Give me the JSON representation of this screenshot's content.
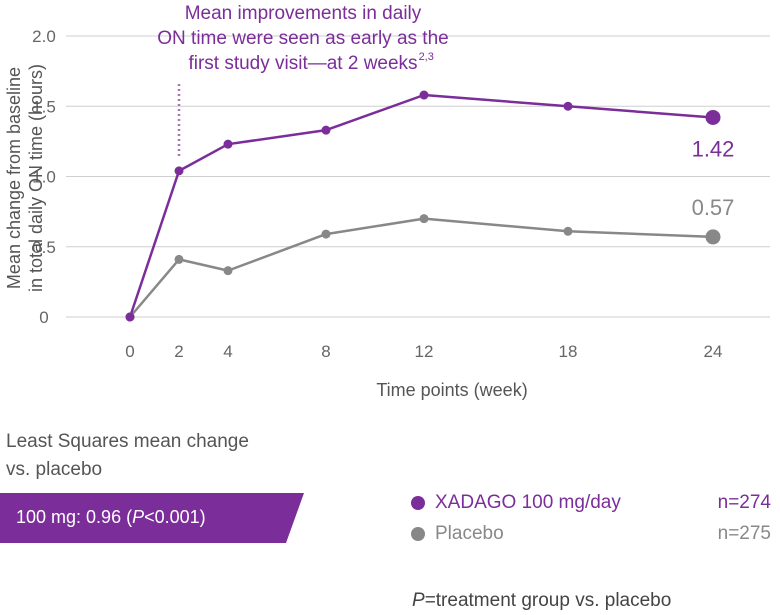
{
  "chart_data": {
    "type": "line",
    "title": "",
    "xlabel": "Time points (week)",
    "ylabel_lines": [
      "Mean change from baseline",
      "in total daily ON time (hours)"
    ],
    "x": [
      0,
      2,
      4,
      8,
      12,
      18,
      24
    ],
    "x_tick_labels": [
      "0",
      "2",
      "4",
      "8",
      "12",
      "18",
      "24"
    ],
    "y_tick_values": [
      0,
      0.5,
      1.0,
      1.5,
      2.0
    ],
    "y_tick_labels": [
      "0",
      "0.5",
      "1.0",
      "1.5",
      "2.0"
    ],
    "ylim": [
      0,
      2.0
    ],
    "grid": "horizontal",
    "series": [
      {
        "name": "XADAGO 100 mg/day",
        "color": "#7b2d9a",
        "values": [
          0,
          1.04,
          1.23,
          1.33,
          1.58,
          1.5,
          1.42
        ],
        "end_label": "1.42"
      },
      {
        "name": "Placebo",
        "color": "#888888",
        "values": [
          0,
          0.41,
          0.33,
          0.59,
          0.7,
          0.61,
          0.57
        ],
        "end_label": "0.57"
      }
    ],
    "annotation": {
      "lines": [
        "Mean improvements in daily",
        "ON time were seen as early as the",
        "first study visit—at 2 weeks"
      ],
      "superscript": "2,3",
      "x": 2
    }
  },
  "least_squares": {
    "title_line1": "Least Squares mean change",
    "title_line2": "vs. placebo",
    "banner_prefix": "100 mg: 0.96 (",
    "banner_p": "P",
    "banner_suffix": "<0.001)",
    "banner_color": "#7b2d9a"
  },
  "legend": [
    {
      "name": "XADAGO 100 mg/day",
      "n": "n=274",
      "color": "#7b2d9a"
    },
    {
      "name": "Placebo",
      "n": "n=275",
      "color": "#888888"
    }
  ],
  "footnote": {
    "p": "P",
    "text": "=treatment group vs. placebo"
  }
}
